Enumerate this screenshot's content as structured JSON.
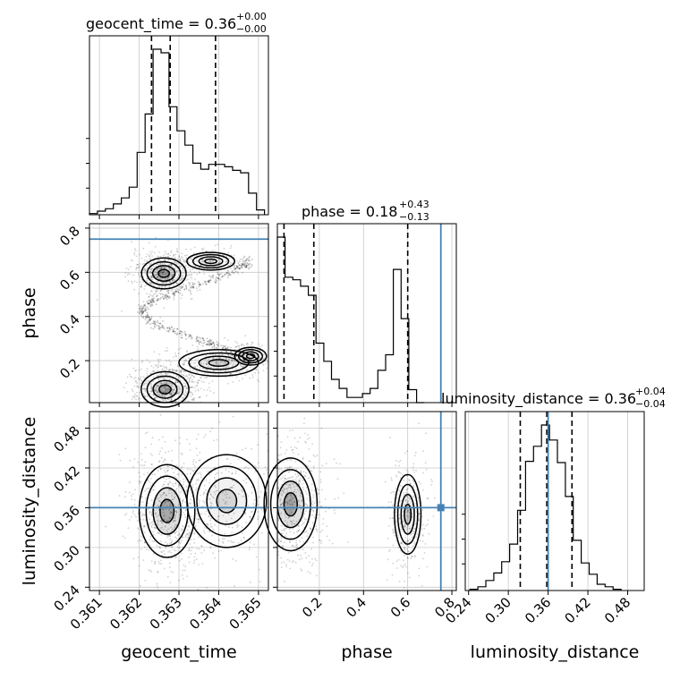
{
  "figure": {
    "titles": [
      {
        "param": "geocent_time",
        "value": "0.36",
        "plus": "+0.00",
        "minus": "−0.00"
      },
      {
        "param": "phase",
        "value": "0.18",
        "plus": "+0.43",
        "minus": "−0.13"
      },
      {
        "param": "luminosity_distance",
        "value": "0.36",
        "plus": "+0.04",
        "minus": "−0.04"
      }
    ],
    "truth_color": "#4682b4",
    "line_color": "#000000"
  },
  "chart_data": {
    "type": "corner",
    "parameters": [
      "geocent_time",
      "phase",
      "luminosity_distance"
    ],
    "axis_labels": {
      "geocent_time": "geocent_time",
      "phase": "phase",
      "luminosity_distance": "luminosity_distance"
    },
    "ranges": {
      "geocent_time": [
        0.36075,
        0.36525
      ],
      "phase": [
        0.01,
        0.82
      ],
      "luminosity_distance": [
        0.235,
        0.505
      ]
    },
    "ticks": {
      "geocent_time": [
        0.361,
        0.362,
        0.363,
        0.364,
        0.365
      ],
      "phase": [
        0.2,
        0.4,
        0.6,
        0.8
      ],
      "luminosity_distance": [
        0.24,
        0.3,
        0.36,
        0.42,
        0.48
      ]
    },
    "tick_labels": {
      "geocent_time": [
        "0.361",
        "0.362",
        "0.363",
        "0.364",
        "0.365"
      ],
      "phase": [
        "0.2",
        "0.4",
        "0.6",
        "0.8"
      ],
      "luminosity_distance": [
        "0.24",
        "0.30",
        "0.36",
        "0.42",
        "0.48"
      ]
    },
    "truths": {
      "geocent_time": null,
      "phase": 0.75,
      "luminosity_distance": 0.36
    },
    "quantiles": {
      "geocent_time": [
        0.36231,
        0.36278,
        0.36392
      ],
      "phase": [
        0.04,
        0.175,
        0.6
      ],
      "luminosity_distance": [
        0.318,
        0.358,
        0.396
      ]
    },
    "histograms": {
      "geocent_time": {
        "edges": [
          0.36075,
          0.36095,
          0.36115,
          0.36135,
          0.36155,
          0.36175,
          0.36195,
          0.36215,
          0.36235,
          0.36255,
          0.36275,
          0.36295,
          0.36315,
          0.36335,
          0.36355,
          0.36375,
          0.36395,
          0.36415,
          0.36435,
          0.36455,
          0.36475,
          0.36495,
          0.36515
        ],
        "counts": [
          1,
          3,
          5,
          9,
          14,
          23,
          52,
          84,
          138,
          135,
          90,
          70,
          58,
          43,
          38,
          42,
          42,
          40,
          37,
          35,
          18,
          4
        ]
      },
      "phase": {
        "edges": [
          0.01,
          0.045,
          0.08,
          0.115,
          0.15,
          0.185,
          0.22,
          0.255,
          0.29,
          0.325,
          0.36,
          0.395,
          0.43,
          0.465,
          0.5,
          0.535,
          0.57,
          0.605,
          0.64,
          0.675
        ],
        "counts": [
          128,
          97,
          95,
          90,
          83,
          46,
          32,
          18,
          11,
          4,
          4,
          7,
          11,
          25,
          37,
          103,
          65,
          10,
          0
        ]
      },
      "luminosity_distance": {
        "edges": [
          0.242,
          0.254,
          0.266,
          0.278,
          0.29,
          0.302,
          0.314,
          0.326,
          0.338,
          0.35,
          0.362,
          0.374,
          0.386,
          0.398,
          0.41,
          0.422,
          0.434,
          0.446,
          0.458,
          0.47
        ],
        "counts": [
          1,
          3,
          8,
          14,
          23,
          37,
          64,
          103,
          115,
          132,
          120,
          102,
          75,
          40,
          22,
          13,
          5,
          3,
          1
        ]
      }
    },
    "density_blobs": {
      "phase_vs_geocent_time": [
        {
          "x": 0.36262,
          "y": 0.595,
          "sx": 0.00028,
          "sy": 0.035,
          "w": 1.0
        },
        {
          "x": 0.36265,
          "y": 0.07,
          "sx": 0.0003,
          "sy": 0.04,
          "w": 1.0
        },
        {
          "x": 0.364,
          "y": 0.19,
          "sx": 0.0005,
          "sy": 0.03,
          "w": 0.5
        },
        {
          "x": 0.3648,
          "y": 0.22,
          "sx": 0.0002,
          "sy": 0.02,
          "w": 0.3
        },
        {
          "x": 0.3638,
          "y": 0.65,
          "sx": 0.0003,
          "sy": 0.02,
          "w": 0.25
        }
      ],
      "luminosity_distance_vs_geocent_time": [
        {
          "x": 0.3627,
          "y": 0.355,
          "sx": 0.00035,
          "sy": 0.035,
          "w": 1.0
        },
        {
          "x": 0.3642,
          "y": 0.37,
          "sx": 0.0005,
          "sy": 0.035,
          "w": 0.45
        }
      ],
      "luminosity_distance_vs_phase": [
        {
          "x": 0.07,
          "y": 0.365,
          "sx": 0.06,
          "sy": 0.035,
          "w": 1.0
        },
        {
          "x": 0.6,
          "y": 0.35,
          "sx": 0.03,
          "sy": 0.03,
          "w": 0.55
        }
      ]
    }
  }
}
